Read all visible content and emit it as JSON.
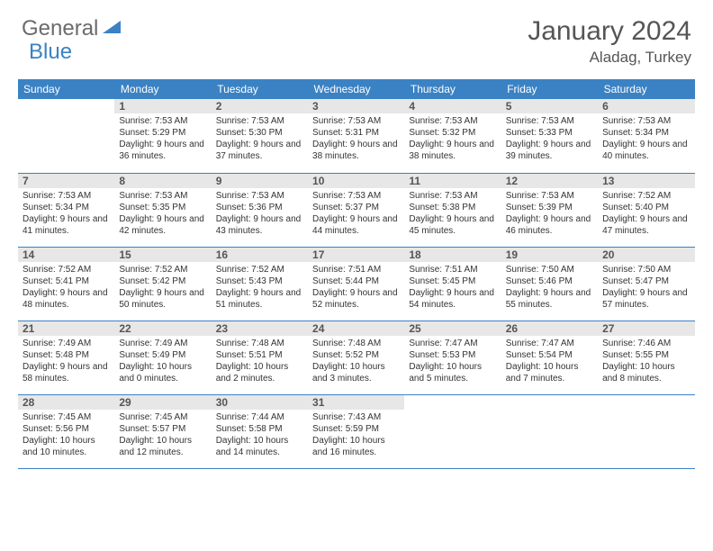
{
  "brand": {
    "word1": "General",
    "word2": "Blue"
  },
  "title": "January 2024",
  "location": "Aladag, Turkey",
  "colors": {
    "header_bg": "#3b82c4",
    "header_text": "#ffffff",
    "daynum_bg": "#e7e7e7",
    "row_border": "#3b82c4",
    "logo_gray": "#6b6b6b",
    "logo_blue": "#3b82c4"
  },
  "layout": {
    "cols": 7,
    "rows": 5,
    "first_day_col": 1
  },
  "weekdays": [
    "Sunday",
    "Monday",
    "Tuesday",
    "Wednesday",
    "Thursday",
    "Friday",
    "Saturday"
  ],
  "days": [
    {
      "n": 1,
      "sunrise": "7:53 AM",
      "sunset": "5:29 PM",
      "daylight": "9 hours and 36 minutes."
    },
    {
      "n": 2,
      "sunrise": "7:53 AM",
      "sunset": "5:30 PM",
      "daylight": "9 hours and 37 minutes."
    },
    {
      "n": 3,
      "sunrise": "7:53 AM",
      "sunset": "5:31 PM",
      "daylight": "9 hours and 38 minutes."
    },
    {
      "n": 4,
      "sunrise": "7:53 AM",
      "sunset": "5:32 PM",
      "daylight": "9 hours and 38 minutes."
    },
    {
      "n": 5,
      "sunrise": "7:53 AM",
      "sunset": "5:33 PM",
      "daylight": "9 hours and 39 minutes."
    },
    {
      "n": 6,
      "sunrise": "7:53 AM",
      "sunset": "5:34 PM",
      "daylight": "9 hours and 40 minutes."
    },
    {
      "n": 7,
      "sunrise": "7:53 AM",
      "sunset": "5:34 PM",
      "daylight": "9 hours and 41 minutes."
    },
    {
      "n": 8,
      "sunrise": "7:53 AM",
      "sunset": "5:35 PM",
      "daylight": "9 hours and 42 minutes."
    },
    {
      "n": 9,
      "sunrise": "7:53 AM",
      "sunset": "5:36 PM",
      "daylight": "9 hours and 43 minutes."
    },
    {
      "n": 10,
      "sunrise": "7:53 AM",
      "sunset": "5:37 PM",
      "daylight": "9 hours and 44 minutes."
    },
    {
      "n": 11,
      "sunrise": "7:53 AM",
      "sunset": "5:38 PM",
      "daylight": "9 hours and 45 minutes."
    },
    {
      "n": 12,
      "sunrise": "7:53 AM",
      "sunset": "5:39 PM",
      "daylight": "9 hours and 46 minutes."
    },
    {
      "n": 13,
      "sunrise": "7:52 AM",
      "sunset": "5:40 PM",
      "daylight": "9 hours and 47 minutes."
    },
    {
      "n": 14,
      "sunrise": "7:52 AM",
      "sunset": "5:41 PM",
      "daylight": "9 hours and 48 minutes."
    },
    {
      "n": 15,
      "sunrise": "7:52 AM",
      "sunset": "5:42 PM",
      "daylight": "9 hours and 50 minutes."
    },
    {
      "n": 16,
      "sunrise": "7:52 AM",
      "sunset": "5:43 PM",
      "daylight": "9 hours and 51 minutes."
    },
    {
      "n": 17,
      "sunrise": "7:51 AM",
      "sunset": "5:44 PM",
      "daylight": "9 hours and 52 minutes."
    },
    {
      "n": 18,
      "sunrise": "7:51 AM",
      "sunset": "5:45 PM",
      "daylight": "9 hours and 54 minutes."
    },
    {
      "n": 19,
      "sunrise": "7:50 AM",
      "sunset": "5:46 PM",
      "daylight": "9 hours and 55 minutes."
    },
    {
      "n": 20,
      "sunrise": "7:50 AM",
      "sunset": "5:47 PM",
      "daylight": "9 hours and 57 minutes."
    },
    {
      "n": 21,
      "sunrise": "7:49 AM",
      "sunset": "5:48 PM",
      "daylight": "9 hours and 58 minutes."
    },
    {
      "n": 22,
      "sunrise": "7:49 AM",
      "sunset": "5:49 PM",
      "daylight": "10 hours and 0 minutes."
    },
    {
      "n": 23,
      "sunrise": "7:48 AM",
      "sunset": "5:51 PM",
      "daylight": "10 hours and 2 minutes."
    },
    {
      "n": 24,
      "sunrise": "7:48 AM",
      "sunset": "5:52 PM",
      "daylight": "10 hours and 3 minutes."
    },
    {
      "n": 25,
      "sunrise": "7:47 AM",
      "sunset": "5:53 PM",
      "daylight": "10 hours and 5 minutes."
    },
    {
      "n": 26,
      "sunrise": "7:47 AM",
      "sunset": "5:54 PM",
      "daylight": "10 hours and 7 minutes."
    },
    {
      "n": 27,
      "sunrise": "7:46 AM",
      "sunset": "5:55 PM",
      "daylight": "10 hours and 8 minutes."
    },
    {
      "n": 28,
      "sunrise": "7:45 AM",
      "sunset": "5:56 PM",
      "daylight": "10 hours and 10 minutes."
    },
    {
      "n": 29,
      "sunrise": "7:45 AM",
      "sunset": "5:57 PM",
      "daylight": "10 hours and 12 minutes."
    },
    {
      "n": 30,
      "sunrise": "7:44 AM",
      "sunset": "5:58 PM",
      "daylight": "10 hours and 14 minutes."
    },
    {
      "n": 31,
      "sunrise": "7:43 AM",
      "sunset": "5:59 PM",
      "daylight": "10 hours and 16 minutes."
    }
  ],
  "labels": {
    "sunrise": "Sunrise:",
    "sunset": "Sunset:",
    "daylight": "Daylight:"
  }
}
